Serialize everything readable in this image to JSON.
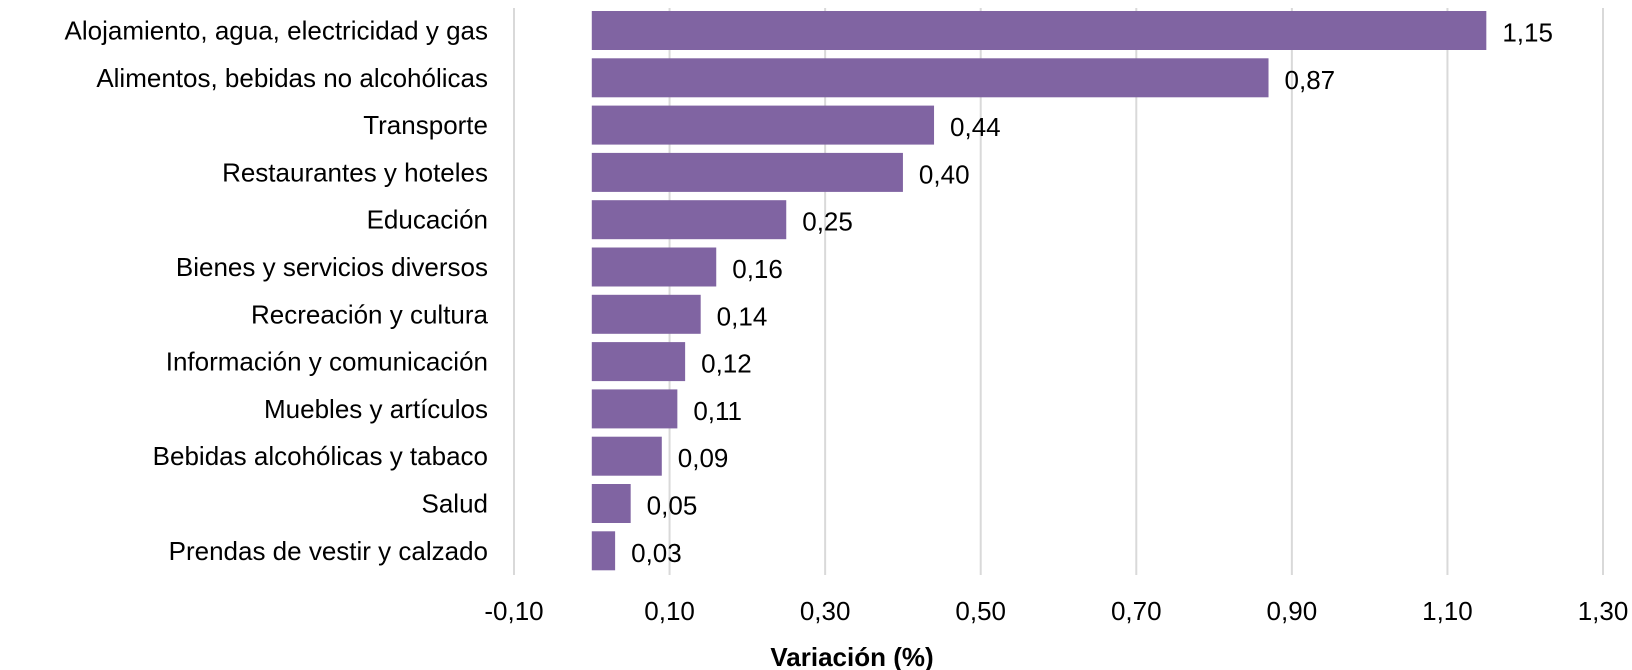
{
  "chart_data": {
    "type": "bar",
    "orientation": "horizontal",
    "categories": [
      "Alojamiento, agua, electricidad y gas",
      "Alimentos, bebidas no alcohólicas",
      "Transporte",
      "Restaurantes y hoteles",
      "Educación",
      "Bienes y servicios diversos",
      "Recreación y cultura",
      "Información y comunicación",
      "Muebles y artículos",
      "Bebidas alcohólicas y tabaco",
      "Salud",
      "Prendas de vestir y calzado"
    ],
    "values": [
      1.15,
      0.87,
      0.44,
      0.4,
      0.25,
      0.16,
      0.14,
      0.12,
      0.11,
      0.09,
      0.05,
      0.03
    ],
    "data_labels": [
      "1,15",
      "0,87",
      "0,44",
      "0,40",
      "0,25",
      "0,16",
      "0,14",
      "0,12",
      "0,11",
      "0,09",
      "0,05",
      "0,03"
    ],
    "xlabel": "Variación (%)",
    "ylabel": "",
    "title": "",
    "xlim": [
      -0.1,
      1.3
    ],
    "xticks": [
      -0.1,
      0.1,
      0.3,
      0.5,
      0.7,
      0.9,
      1.1,
      1.3
    ],
    "xtick_labels": [
      "-0,10",
      "0,10",
      "0,30",
      "0,50",
      "0,70",
      "0,90",
      "1,10",
      "1,30"
    ],
    "grid": "vertical",
    "legend": "none",
    "bar_color": "#8064a2"
  }
}
